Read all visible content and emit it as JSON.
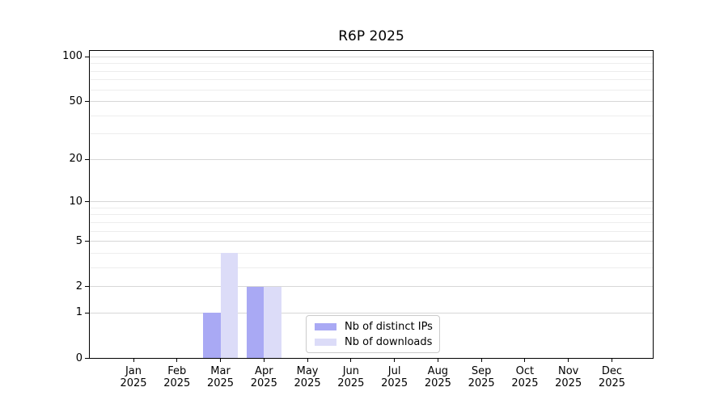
{
  "figure": {
    "title": "R6P 2025"
  },
  "chart_data": {
    "type": "bar",
    "title": "R6P 2025",
    "categories": [
      "Jan 2025",
      "Feb 2025",
      "Mar 2025",
      "Apr 2025",
      "May 2025",
      "Jun 2025",
      "Jul 2025",
      "Aug 2025",
      "Sep 2025",
      "Oct 2025",
      "Nov 2025",
      "Dec 2025"
    ],
    "series": [
      {
        "name": "Nb of distinct IPs",
        "color": "#a9a9f4",
        "values": [
          0,
          0,
          1,
          2,
          0,
          0,
          0,
          0,
          0,
          0,
          0,
          0
        ]
      },
      {
        "name": "Nb of downloads",
        "color": "#dcdcf8",
        "values": [
          0,
          0,
          4,
          2,
          0,
          0,
          0,
          0,
          0,
          0,
          0,
          0
        ]
      }
    ],
    "xlabel": "",
    "ylabel": "",
    "y_scale": "log(1+x)",
    "yticks": [
      0,
      1,
      2,
      5,
      10,
      20,
      50,
      100
    ],
    "minor_yticks": [
      3,
      4,
      6,
      7,
      8,
      9,
      30,
      40,
      60,
      70,
      80,
      90
    ],
    "ylim": [
      0,
      110
    ],
    "grid": "horizontal major+minor",
    "legend_position": "inside bottom-center",
    "colors": {
      "background": "#ffffff",
      "grid_major": "#d7d7d7",
      "grid_minor": "#ededed",
      "spine": "#000000",
      "text": "#000000",
      "legend_border": "#cbcbcb"
    }
  }
}
